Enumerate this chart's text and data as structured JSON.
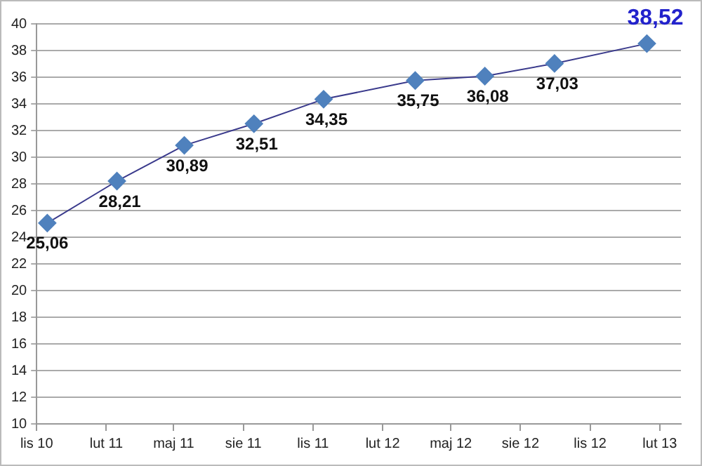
{
  "chart_data": {
    "type": "line",
    "x": [
      "2010-11-15",
      "2011-02-15",
      "2011-05-15",
      "2011-08-15",
      "2011-11-15",
      "2012-03-15",
      "2012-06-15",
      "2012-09-15",
      "2013-01-15"
    ],
    "series": [
      {
        "color": "#4f81bd",
        "values": [
          25.06,
          28.21,
          30.89,
          32.51,
          34.35,
          35.75,
          36.08,
          37.03,
          38.52
        ],
        "value_labels": [
          "25,06",
          "28,21",
          "30,89",
          "32,51",
          "34,35",
          "35,75",
          "36,08",
          "37,03",
          "38,52"
        ]
      }
    ],
    "xlim": [
      "2010-11-01",
      "2013-03-01"
    ],
    "xticks": [
      {
        "value": "2010-11-01",
        "label": "lis 10"
      },
      {
        "value": "2011-02-01",
        "label": "lut 11"
      },
      {
        "value": "2011-05-01",
        "label": "maj 11"
      },
      {
        "value": "2011-08-01",
        "label": "sie 11"
      },
      {
        "value": "2011-11-01",
        "label": "lis 11"
      },
      {
        "value": "2012-02-01",
        "label": "lut 12"
      },
      {
        "value": "2012-05-01",
        "label": "maj 12"
      },
      {
        "value": "2012-08-01",
        "label": "sie 12"
      },
      {
        "value": "2012-11-01",
        "label": "lis 12"
      },
      {
        "value": "2013-02-01",
        "label": "lut 13"
      }
    ],
    "ylim": [
      10,
      40
    ],
    "yticks": [
      10,
      12,
      14,
      16,
      18,
      20,
      22,
      24,
      26,
      28,
      30,
      32,
      34,
      36,
      38,
      40
    ],
    "grid": "y",
    "legend": false,
    "marker": "diamond",
    "line_style": "solid"
  }
}
